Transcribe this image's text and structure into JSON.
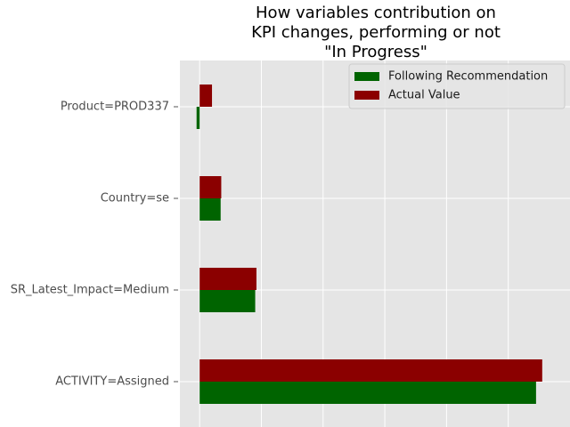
{
  "chart_data": {
    "type": "bar",
    "orientation": "horizontal",
    "title": "How variables contribution on KPI changes, performing or not \"In Progress\"",
    "title_lines": [
      "How variables contribution on",
      "KPI changes, performing or not",
      "\"In Progress\""
    ],
    "categories": [
      "Product=PROD337",
      "Country=se",
      "SR_Latest_Impact=Medium",
      "ACTIVITY=Assigned"
    ],
    "series": [
      {
        "name": "Following Recommendation",
        "color": "#006400",
        "values": [
          -0.005,
          0.034,
          0.09,
          0.545
        ]
      },
      {
        "name": "Actual Value",
        "color": "#8b0000",
        "values": [
          0.02,
          0.035,
          0.092,
          0.555
        ]
      }
    ],
    "xlabel": "",
    "ylabel": "",
    "xlim": [
      -0.032,
      0.6
    ],
    "xgrid_values": [
      0.0,
      0.1,
      0.2,
      0.3,
      0.4,
      0.5
    ],
    "grid": true,
    "legend_position": "top-right",
    "style": "ggplot",
    "background_color": "#e5e5e5",
    "grid_color": "#ffffff"
  }
}
